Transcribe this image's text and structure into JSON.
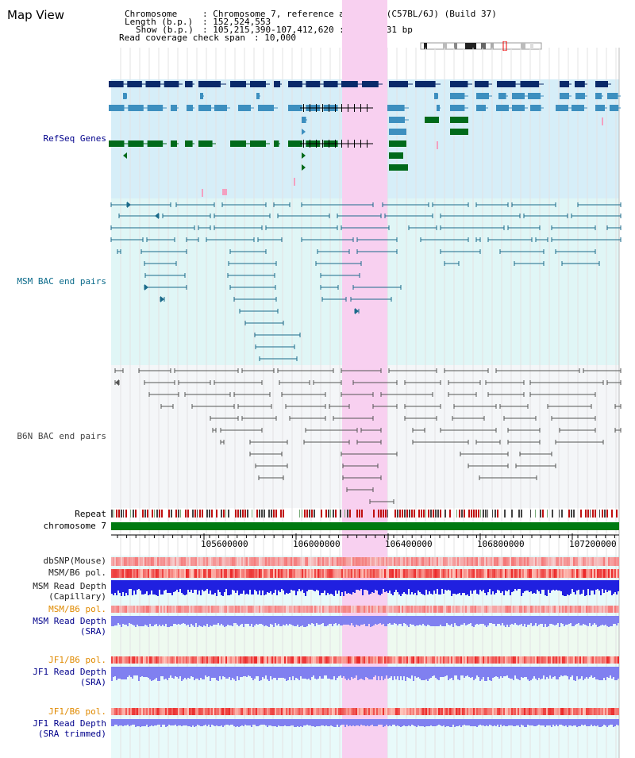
{
  "header": {
    "view_title": "Map View",
    "chromosome_label": "Chromosome",
    "chromosome_value": ": Chromosome 7, reference assembly (C57BL/6J) (Build 37)",
    "length_label": "Length (b.p.)",
    "length_value": ": 152,524,553",
    "show_label": "Show (b.p.)",
    "show_value": ": 105,215,390-107,412,620 : 2,197,231 bp",
    "span_label": "Read coverage check span",
    "span_value": ": 10,000"
  },
  "tracks": {
    "refseq": "RefSeq Genes",
    "msm_bac": "MSM BAC end pairs",
    "b6n_bac": "B6N BAC end pairs",
    "repeat": "Repeat",
    "chromosome": "chromosome 7",
    "dbsnp": "dbSNP(Mouse)",
    "msm_b6_pol_1": "MSM/B6 pol.",
    "msm_read_depth_cap_1": "MSM Read Depth",
    "msm_read_depth_cap_2": "(Capillary)",
    "msm_b6_pol_2": "MSM/B6 pol.",
    "msm_read_depth_sra_1": "MSM Read Depth",
    "msm_read_depth_sra_2": "(SRA)",
    "jf1_b6_pol_1": "JF1/B6 pol.",
    "jf1_read_depth_sra_1": "JF1 Read Depth",
    "jf1_read_depth_sra_2": "(SRA)",
    "jf1_b6_pol_2": "JF1/B6 pol.",
    "jf1_read_depth_trim_1": "JF1 Read Depth",
    "jf1_read_depth_trim_2": "(SRA trimmed)"
  },
  "axis": {
    "ticks": [
      "105600000",
      "106000000",
      "106400000",
      "106800000",
      "107200000"
    ]
  },
  "colors": {
    "highlight": "#f8d0f0",
    "refseq_bg": "#d6eef8",
    "refseq_navy": "#0a2a6a",
    "refseq_blue": "#3d8fbf",
    "refseq_green": "#006a1a",
    "msm_bac": "#1a6a8a",
    "b6n_bac": "#555555",
    "chromosome_bar": "#007a10",
    "depth_blue": "#2020e0",
    "depth_lavender": "#8080f0"
  }
}
